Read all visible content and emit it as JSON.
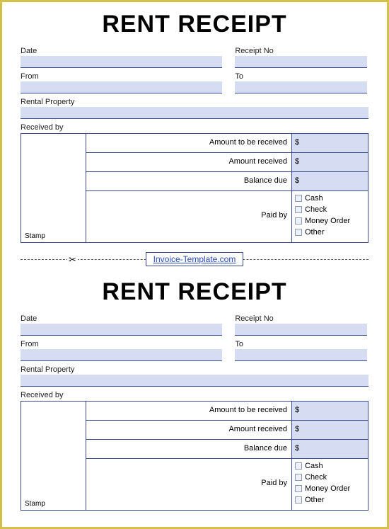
{
  "title": "RENT RECEIPT",
  "fields": {
    "date": "Date",
    "receipt_no": "Receipt No",
    "from": "From",
    "to": "To",
    "rental_property": "Rental Property",
    "received_by": "Received by",
    "stamp": "Stamp"
  },
  "table": {
    "amount_to_receive": "Amount to be received",
    "amount_received": "Amount received",
    "balance_due": "Balance due",
    "paid_by": "Paid by",
    "currency": "$"
  },
  "payment_options": [
    "Cash",
    "Check",
    "Money Order",
    "Other"
  ],
  "link_text": "Invoice-Template.com",
  "colors": {
    "border": "#d4c04a",
    "field_bg": "#d6ddf2",
    "line": "#3a4b8a",
    "link": "#2b4bb8"
  }
}
